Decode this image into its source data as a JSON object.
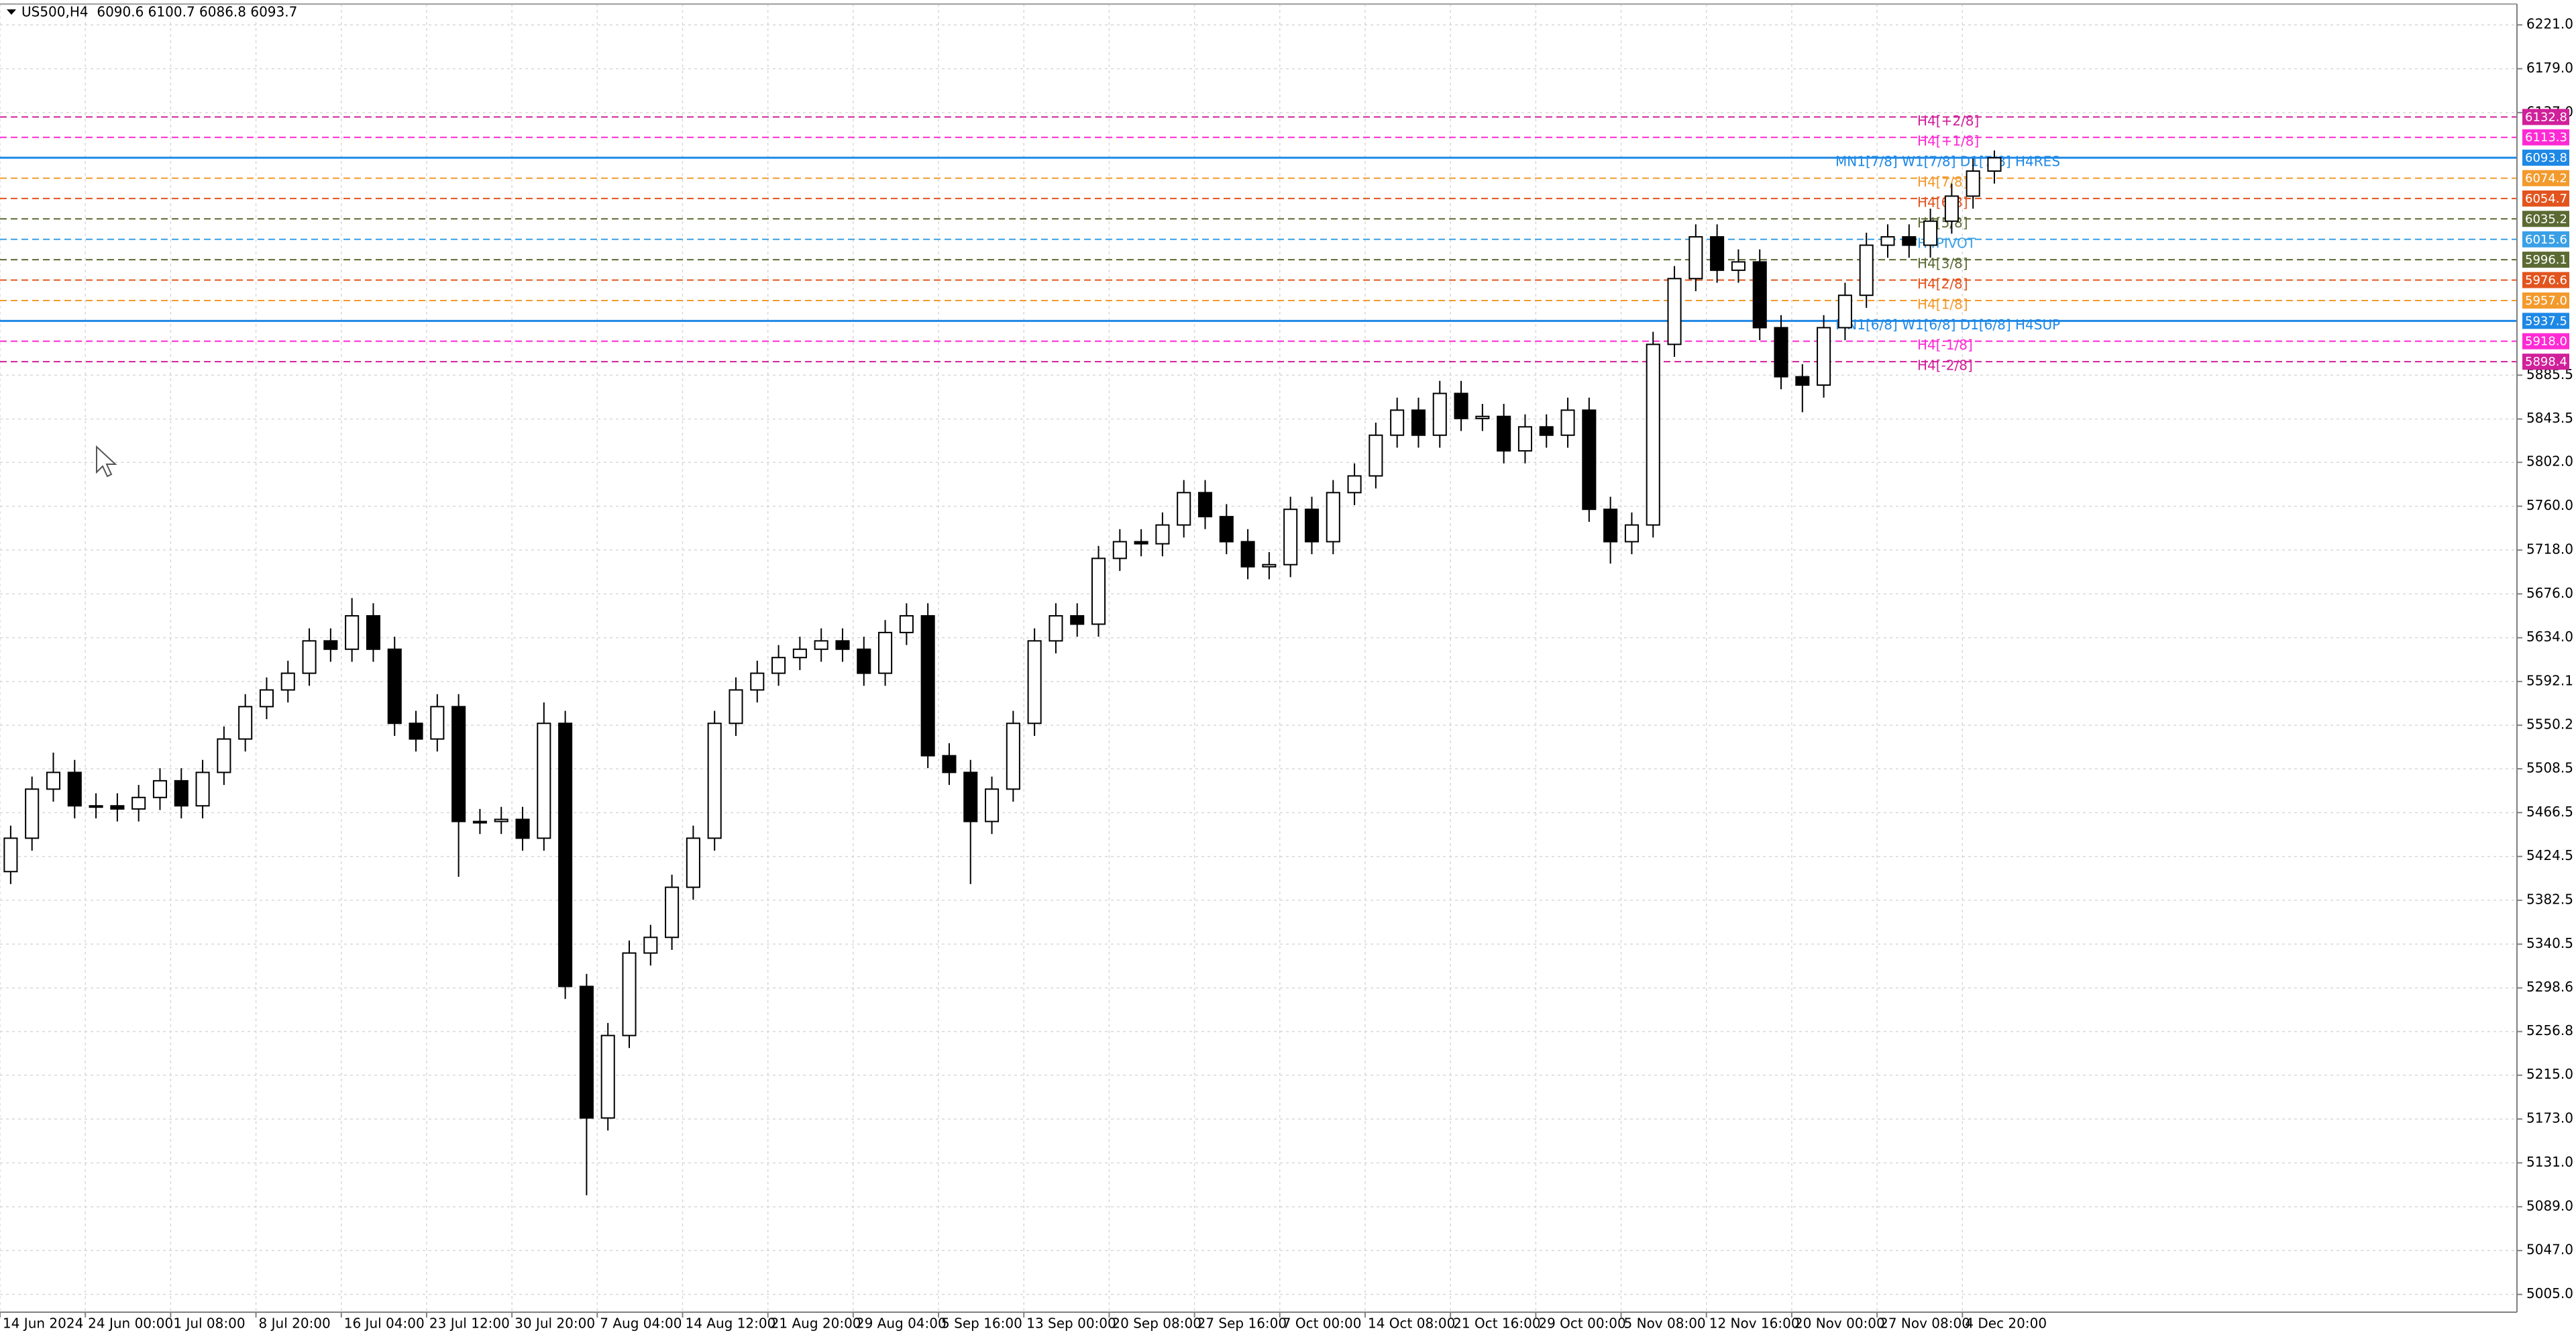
{
  "chart_data": {
    "type": "candlestick",
    "title": "US500,H4  6090.6 6100.7 6086.8 6093.7",
    "up_color": "#ffffff",
    "down_color": "#000000",
    "edge_color": "#000000",
    "grid": true,
    "xlim": [
      0,
      118
    ],
    "ylim": [
      4988,
      6241
    ],
    "xticks": [
      {
        "value": 0,
        "label": "14 Jun 2024"
      },
      {
        "value": 4,
        "label": "24 Jun 00:00"
      },
      {
        "value": 8,
        "label": "1 Jul 08:00"
      },
      {
        "value": 12,
        "label": "8 Jul 20:00"
      },
      {
        "value": 16,
        "label": "16 Jul 04:00"
      },
      {
        "value": 20,
        "label": "23 Jul 12:00"
      },
      {
        "value": 24,
        "label": "30 Jul 20:00"
      },
      {
        "value": 28,
        "label": "7 Aug 04:00"
      },
      {
        "value": 32,
        "label": "14 Aug 12:00"
      },
      {
        "value": 36,
        "label": "21 Aug 20:00"
      },
      {
        "value": 40,
        "label": "29 Aug 04:00"
      },
      {
        "value": 44,
        "label": "5 Sep 16:00"
      },
      {
        "value": 48,
        "label": "13 Sep 00:00"
      },
      {
        "value": 52,
        "label": "20 Sep 08:00"
      },
      {
        "value": 56,
        "label": "27 Sep 16:00"
      },
      {
        "value": 60,
        "label": "7 Oct 00:00"
      },
      {
        "value": 64,
        "label": "14 Oct 08:00"
      },
      {
        "value": 68,
        "label": "21 Oct 16:00"
      },
      {
        "value": 72,
        "label": "29 Oct 00:00"
      },
      {
        "value": 76,
        "label": "5 Nov 08:00"
      },
      {
        "value": 80,
        "label": "12 Nov 16:00"
      },
      {
        "value": 84,
        "label": "20 Nov 00:00"
      },
      {
        "value": 88,
        "label": "27 Nov 08:00"
      },
      {
        "value": 92,
        "label": "4 Dec 20:00"
      }
    ],
    "yticks": [
      {
        "value": 5005,
        "label": "5005.0"
      },
      {
        "value": 5047,
        "label": "5047.0"
      },
      {
        "value": 5089,
        "label": "5089.0"
      },
      {
        "value": 5131,
        "label": "5131.0"
      },
      {
        "value": 5173,
        "label": "5173.0"
      },
      {
        "value": 5215,
        "label": "5215.0"
      },
      5256.8,
      5298.6,
      5340.5,
      5382.5,
      5424.5,
      5466.5,
      5508.5,
      5550.2,
      5592.1,
      {
        "value": 5634,
        "label": "5634.0"
      },
      {
        "value": 5676,
        "label": "5676.0"
      },
      {
        "value": 5718,
        "label": "5718.0"
      },
      {
        "value": 5760,
        "label": "5760.0"
      },
      {
        "value": 5802,
        "label": "5802.0"
      },
      5843.5,
      5885.5,
      {
        "value": 6137,
        "label": "6137.0"
      },
      {
        "value": 6179,
        "label": "6179.0"
      },
      {
        "value": 6221,
        "label": "6221.0"
      }
    ],
    "open": [
      5410,
      5442,
      5489,
      5505,
      5473,
      5473,
      5470,
      5481,
      5497,
      5473,
      5505,
      5537,
      5568,
      5584,
      5600,
      5631,
      5623,
      5655,
      5623,
      5552,
      5537,
      5568,
      5458,
      5458,
      5460,
      5442,
      5552,
      5300,
      5174,
      5253,
      5332,
      5347,
      5395,
      5442,
      5552,
      5584,
      5600,
      5615,
      5623,
      5631,
      5623,
      5600,
      5639,
      5655,
      5521,
      5505,
      5458,
      5489,
      5552,
      5631,
      5655,
      5647,
      5710,
      5726,
      5724,
      5742,
      5773,
      5750,
      5726,
      5702,
      5704,
      5757,
      5726,
      5773,
      5789,
      5828,
      5852,
      5828,
      5868,
      5844,
      5846,
      5813,
      5836,
      5828,
      5852,
      5757,
      5726,
      5742,
      5915,
      5978,
      6018,
      5986,
      5994,
      5931,
      5884,
      5876,
      5931,
      5962,
      6010,
      6018,
      6010,
      6033,
      6057,
      6081
    ],
    "high": [
      5454,
      5501,
      5524,
      5517,
      5485,
      5485,
      5493,
      5509,
      5509,
      5517,
      5549,
      5580,
      5596,
      5612,
      5643,
      5643,
      5672,
      5667,
      5635,
      5564,
      5580,
      5580,
      5470,
      5472,
      5472,
      5572,
      5564,
      5312,
      5265,
      5344,
      5359,
      5407,
      5454,
      5564,
      5596,
      5612,
      5627,
      5635,
      5643,
      5643,
      5635,
      5651,
      5667,
      5667,
      5533,
      5517,
      5501,
      5564,
      5643,
      5667,
      5667,
      5722,
      5738,
      5738,
      5754,
      5785,
      5785,
      5762,
      5738,
      5716,
      5769,
      5769,
      5785,
      5801,
      5840,
      5864,
      5864,
      5880,
      5880,
      5858,
      5858,
      5848,
      5848,
      5864,
      5864,
      5769,
      5754,
      5927,
      5990,
      6030,
      6030,
      6006,
      6006,
      5943,
      5896,
      5943,
      5974,
      6022,
      6030,
      6030,
      6045,
      6069,
      6093,
      6100.7
    ],
    "low": [
      5398,
      5430,
      5477,
      5461,
      5461,
      5458,
      5458,
      5469,
      5461,
      5461,
      5493,
      5525,
      5556,
      5572,
      5588,
      5611,
      5611,
      5611,
      5540,
      5525,
      5525,
      5405,
      5446,
      5446,
      5430,
      5430,
      5288,
      5100,
      5162,
      5241,
      5320,
      5335,
      5383,
      5430,
      5540,
      5572,
      5588,
      5603,
      5611,
      5611,
      5588,
      5588,
      5627,
      5509,
      5493,
      5398,
      5446,
      5477,
      5540,
      5619,
      5635,
      5635,
      5698,
      5712,
      5712,
      5730,
      5738,
      5714,
      5690,
      5690,
      5692,
      5714,
      5714,
      5761,
      5777,
      5816,
      5816,
      5816,
      5832,
      5832,
      5801,
      5801,
      5816,
      5816,
      5745,
      5705,
      5714,
      5730,
      5903,
      5966,
      5974,
      5974,
      5919,
      5872,
      5850,
      5864,
      5919,
      5950,
      5998,
      5998,
      5998,
      6021,
      6045,
      6069
    ],
    "close": [
      5442,
      5489,
      5505,
      5473,
      5473,
      5470,
      5481,
      5497,
      5473,
      5505,
      5537,
      5568,
      5584,
      5600,
      5631,
      5623,
      5655,
      5623,
      5552,
      5537,
      5568,
      5458,
      5458,
      5460,
      5442,
      5552,
      5300,
      5174,
      5253,
      5332,
      5347,
      5395,
      5442,
      5552,
      5584,
      5600,
      5615,
      5623,
      5631,
      5623,
      5600,
      5639,
      5655,
      5521,
      5505,
      5458,
      5489,
      5552,
      5631,
      5655,
      5647,
      5710,
      5726,
      5724,
      5742,
      5773,
      5750,
      5726,
      5702,
      5704,
      5757,
      5726,
      5773,
      5789,
      5828,
      5852,
      5828,
      5868,
      5844,
      5846,
      5813,
      5836,
      5828,
      5852,
      5757,
      5726,
      5742,
      5915,
      5978,
      6018,
      5986,
      5994,
      5931,
      5884,
      5876,
      5931,
      5962,
      6010,
      6018,
      6010,
      6033,
      6057,
      6081,
      6093.7
    ],
    "levels": [
      {
        "name": "H4[+2/8]",
        "value": 6132.8,
        "color": "#d0209a",
        "dash": true
      },
      {
        "name": "H4[+1/8]",
        "value": 6113.3,
        "color": "#ff2ad4",
        "dash": true
      },
      {
        "name": "MN1[7/8] W1[7/8] D1[7/8] H4RES",
        "value": 6093.8,
        "color": "#1e88e5",
        "dash": false
      },
      {
        "name": "H4[7/8]",
        "value": 6074.2,
        "color": "#f39a2c",
        "dash": true
      },
      {
        "name": "H4[6/8]",
        "value": 6054.7,
        "color": "#e2541e",
        "dash": true
      },
      {
        "name": "H4[5/8]",
        "value": 6035.2,
        "color": "#5b6a32",
        "dash": true
      },
      {
        "name": "H4PIVOT",
        "value": 6015.6,
        "color": "#3aa0e6",
        "dash": true
      },
      {
        "name": "H4[3/8]",
        "value": 5996.1,
        "color": "#5b6a32",
        "dash": true
      },
      {
        "name": "H4[2/8]",
        "value": 5976.6,
        "color": "#e2541e",
        "dash": true
      },
      {
        "name": "H4[1/8]",
        "value": 5957,
        "value_label": "5957.0",
        "color": "#f39a2c",
        "dash": true
      },
      {
        "name": "MN1[6/8] W1[6/8] D1[6/8] H4SUP",
        "value": 5937.5,
        "color": "#1e88e5",
        "dash": false
      },
      {
        "name": "H4[-1/8]",
        "value": 5918,
        "value_label": "5918.0",
        "color": "#ff2ad4",
        "dash": true
      },
      {
        "name": "H4[-2/8]",
        "value": 5898.4,
        "color": "#d0209a",
        "dash": true
      }
    ]
  }
}
